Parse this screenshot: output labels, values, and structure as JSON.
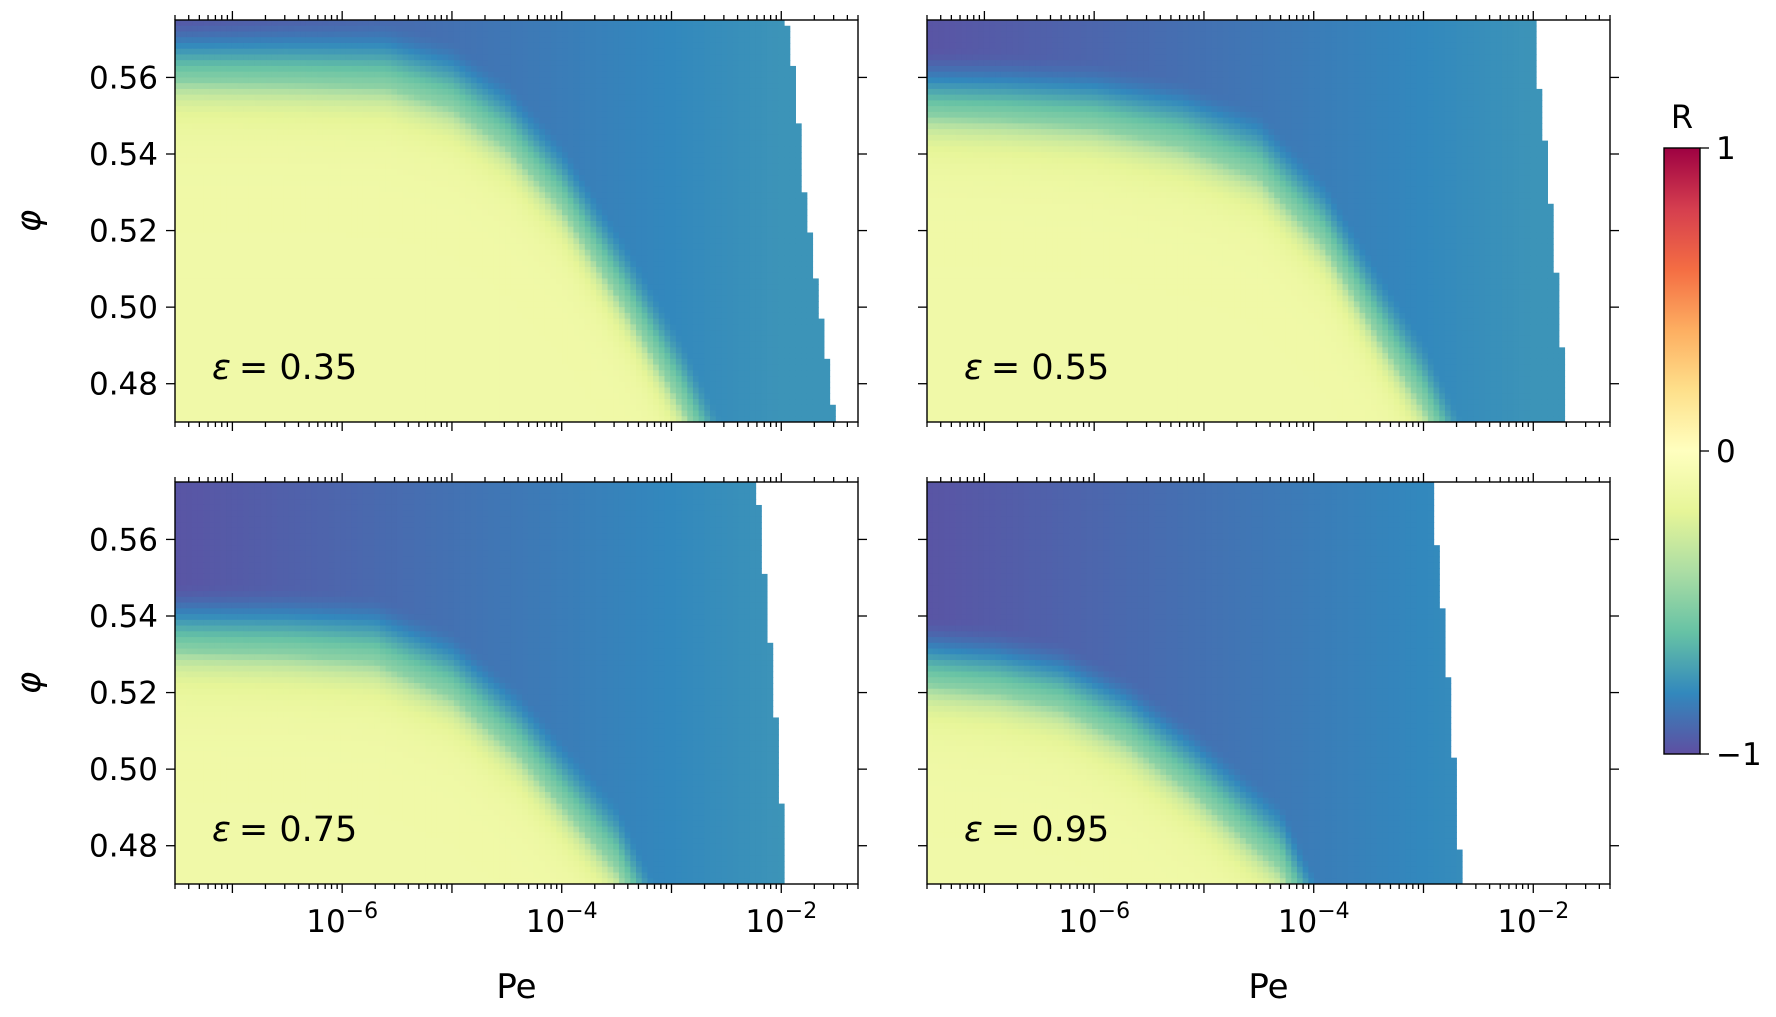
{
  "chart_data": {
    "type": "heatmap",
    "x_scale": "log",
    "xlim": [
      3e-08,
      0.05
    ],
    "ylim": [
      0.47,
      0.575
    ],
    "xlabel": "Pe",
    "ylabel": "φ",
    "x_ticks": [
      {
        "value": 1e-06,
        "base": "10",
        "exp": "−6"
      },
      {
        "value": 0.0001,
        "base": "10",
        "exp": "−4"
      },
      {
        "value": 0.01,
        "base": "10",
        "exp": "−2"
      }
    ],
    "y_ticks": [
      {
        "value": 0.48,
        "label": "0.48"
      },
      {
        "value": 0.5,
        "label": "0.50"
      },
      {
        "value": 0.52,
        "label": "0.52"
      },
      {
        "value": 0.54,
        "label": "0.54"
      },
      {
        "value": 0.56,
        "label": "0.56"
      }
    ],
    "colorbar": {
      "label": "R",
      "min": -1,
      "max": 1,
      "ticks": [
        {
          "value": 1,
          "label": "1"
        },
        {
          "value": 0,
          "label": "0"
        },
        {
          "value": -1,
          "label": "−1"
        }
      ],
      "colormap": "Spectral_r",
      "colors": [
        "#5e4fa2",
        "#3288bd",
        "#66c2a5",
        "#abdda4",
        "#e6f598",
        "#ffffbf",
        "#fee08b",
        "#fdae61",
        "#f46d43",
        "#d53e4f",
        "#9e0142"
      ]
    },
    "panels": [
      {
        "label_symbol": "ε",
        "label_value": "= 0.35",
        "epsilon": 0.35,
        "boundary_phi": [
          0.555,
          0.5545,
          0.5535,
          0.548,
          0.538,
          0.522,
          0.495,
          0.47
        ],
        "boundary_log10pe": [
          -7.5,
          -6.5,
          -5.6,
          -5.0,
          -4.5,
          -4.0,
          -3.4,
          -2.9
        ],
        "data_cutoff_phi": [
          0.47,
          0.48,
          0.49,
          0.5,
          0.51,
          0.52,
          0.53,
          0.54,
          0.55,
          0.56,
          0.575
        ],
        "data_cutoff_pe": [
          0.03,
          0.028,
          0.025,
          0.022,
          0.02,
          0.018,
          0.016,
          0.015,
          0.014,
          0.013,
          0.011
        ]
      },
      {
        "label_symbol": "ε",
        "label_value": "= 0.55",
        "epsilon": 0.55,
        "boundary_phi": [
          0.546,
          0.545,
          0.543,
          0.538,
          0.53,
          0.512,
          0.488,
          0.47
        ],
        "boundary_log10pe": [
          -7.5,
          -6.8,
          -6.0,
          -5.2,
          -4.5,
          -3.9,
          -3.4,
          -3.0
        ],
        "data_cutoff_phi": [
          0.47,
          0.48,
          0.49,
          0.5,
          0.51,
          0.52,
          0.53,
          0.54,
          0.55,
          0.56,
          0.575
        ],
        "data_cutoff_pe": [
          0.02,
          0.019,
          0.018,
          0.017,
          0.016,
          0.015,
          0.014,
          0.013,
          0.012,
          0.011,
          0.01
        ]
      },
      {
        "label_symbol": "ε",
        "label_value": "= 0.75",
        "epsilon": 0.75,
        "boundary_phi": [
          0.527,
          0.526,
          0.524,
          0.515,
          0.5,
          0.48,
          0.47
        ],
        "boundary_log10pe": [
          -7.5,
          -6.5,
          -5.7,
          -5.0,
          -4.4,
          -3.8,
          -3.5
        ],
        "data_cutoff_phi": [
          0.47,
          0.48,
          0.49,
          0.5,
          0.51,
          0.52,
          0.53,
          0.54,
          0.55,
          0.56,
          0.575
        ],
        "data_cutoff_pe": [
          0.0105,
          0.01,
          0.01,
          0.0095,
          0.009,
          0.0085,
          0.008,
          0.0075,
          0.007,
          0.0065,
          0.006
        ]
      },
      {
        "label_symbol": "ε",
        "label_value": "= 0.95",
        "epsilon": 0.95,
        "boundary_phi": [
          0.518,
          0.516,
          0.512,
          0.503,
          0.49,
          0.475,
          0.47
        ],
        "boundary_log10pe": [
          -7.5,
          -6.9,
          -6.3,
          -5.7,
          -5.1,
          -4.5,
          -4.3
        ],
        "data_cutoff_phi": [
          0.47,
          0.48,
          0.49,
          0.5,
          0.51,
          0.52,
          0.53,
          0.54,
          0.55,
          0.56,
          0.575
        ],
        "data_cutoff_pe": [
          0.0022,
          0.0021,
          0.002,
          0.0019,
          0.0018,
          0.0017,
          0.0016,
          0.0015,
          0.0014,
          0.0013,
          0.0012
        ]
      }
    ]
  }
}
